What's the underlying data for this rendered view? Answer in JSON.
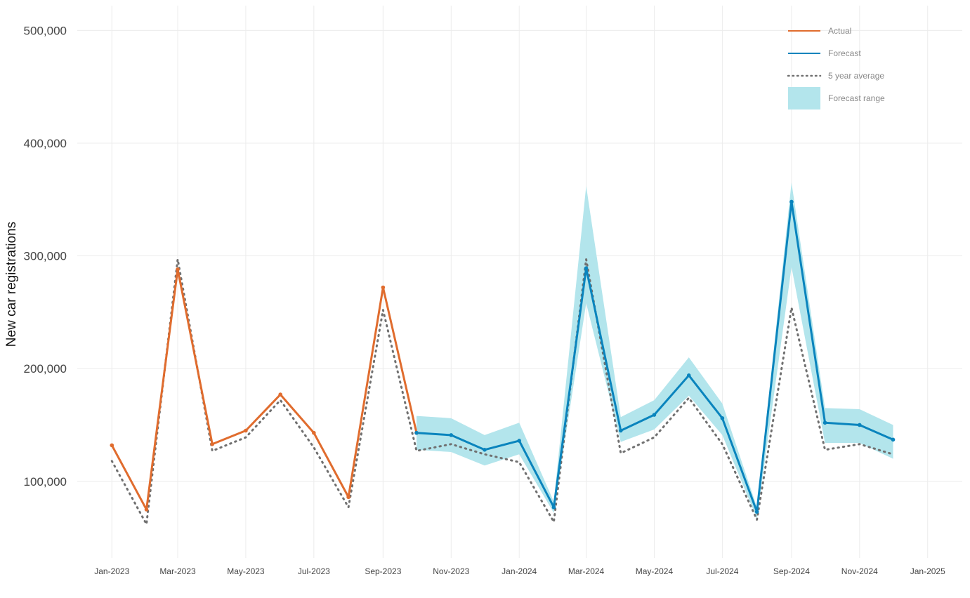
{
  "chart_data": {
    "type": "line",
    "ylabel": "New car registrations",
    "xlabel": "",
    "ylim": [
      32000,
      522000
    ],
    "yticks": [
      100000,
      200000,
      300000,
      400000,
      500000
    ],
    "ytick_labels": [
      "100,000",
      "200,000",
      "300,000",
      "400,000",
      "500,000"
    ],
    "x_start": "2022-12-01",
    "x_end": "2025-02-01",
    "xticks": [
      "2023-01-01",
      "2023-03-01",
      "2023-05-01",
      "2023-07-01",
      "2023-09-01",
      "2023-11-01",
      "2024-01-01",
      "2024-03-01",
      "2024-05-01",
      "2024-07-01",
      "2024-09-01",
      "2024-11-01",
      "2025-01-01"
    ],
    "xtick_labels": [
      "Jan-2023",
      "Mar-2023",
      "May-2023",
      "Jul-2023",
      "Sep-2023",
      "Nov-2023",
      "Jan-2024",
      "Mar-2024",
      "May-2024",
      "Jul-2024",
      "Sep-2024",
      "Nov-2024",
      "Jan-2025"
    ],
    "grid": true,
    "legend_position": "top-right",
    "colors": {
      "actual": "#e06c2e",
      "forecast": "#0a84bd",
      "average": "#707070",
      "range": "#b3e5ec"
    },
    "series": [
      {
        "name": "Actual",
        "style": "solid",
        "x": [
          "2023-01-01",
          "2023-02-01",
          "2023-03-01",
          "2023-04-01",
          "2023-05-01",
          "2023-06-01",
          "2023-07-01",
          "2023-08-01",
          "2023-09-01",
          "2023-10-01"
        ],
        "values": [
          132000,
          75000,
          288000,
          133000,
          145000,
          177000,
          143000,
          86000,
          272000,
          143000
        ]
      },
      {
        "name": "Forecast",
        "style": "solid",
        "x": [
          "2023-10-01",
          "2023-11-01",
          "2023-12-01",
          "2024-01-01",
          "2024-02-01",
          "2024-03-01",
          "2024-04-01",
          "2024-05-01",
          "2024-06-01",
          "2024-07-01",
          "2024-08-01",
          "2024-09-01",
          "2024-10-01",
          "2024-11-01",
          "2024-12-01"
        ],
        "values": [
          143000,
          141000,
          128000,
          136000,
          77000,
          289000,
          145000,
          159000,
          194000,
          156000,
          73000,
          348000,
          152000,
          150000,
          137000
        ]
      },
      {
        "name": "5 year average",
        "style": "dotted",
        "x": [
          "2023-01-01",
          "2023-02-01",
          "2023-03-01",
          "2023-04-01",
          "2023-05-01",
          "2023-06-01",
          "2023-07-01",
          "2023-08-01",
          "2023-09-01",
          "2023-10-01",
          "2023-11-01",
          "2023-12-01",
          "2024-01-01",
          "2024-02-01",
          "2024-03-01",
          "2024-04-01",
          "2024-05-01",
          "2024-06-01",
          "2024-07-01",
          "2024-08-01",
          "2024-09-01",
          "2024-10-01",
          "2024-11-01",
          "2024-12-01"
        ],
        "values": [
          118000,
          62000,
          297000,
          127000,
          139000,
          172000,
          130000,
          77000,
          252000,
          127000,
          133000,
          124000,
          117000,
          64000,
          297000,
          125000,
          139000,
          174000,
          133000,
          66000,
          254000,
          128000,
          133000,
          124000
        ]
      },
      {
        "name": "Forecast range",
        "style": "band",
        "x": [
          "2023-10-01",
          "2023-11-01",
          "2023-12-01",
          "2024-01-01",
          "2024-02-01",
          "2024-03-01",
          "2024-04-01",
          "2024-05-01",
          "2024-06-01",
          "2024-07-01",
          "2024-08-01",
          "2024-09-01",
          "2024-10-01",
          "2024-11-01",
          "2024-12-01"
        ],
        "upper": [
          158000,
          156000,
          141000,
          152000,
          82000,
          362000,
          157000,
          172000,
          210000,
          169000,
          77000,
          365000,
          165000,
          164000,
          150000
        ],
        "lower": [
          128000,
          126000,
          114000,
          124000,
          72000,
          258000,
          135000,
          146000,
          176000,
          141000,
          67000,
          290000,
          134000,
          134000,
          120000
        ]
      }
    ]
  }
}
